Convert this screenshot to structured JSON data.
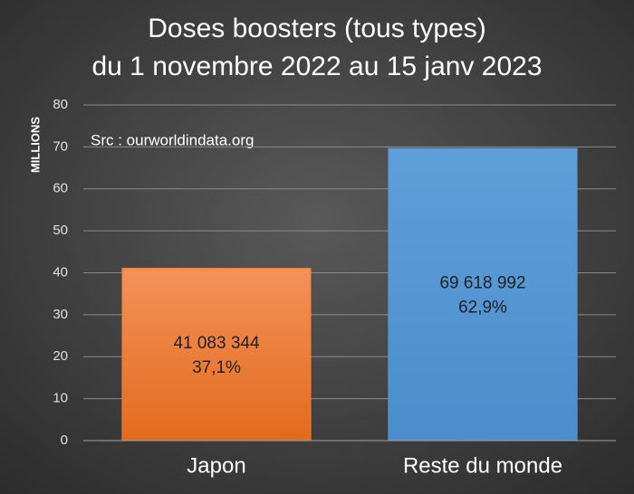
{
  "chart_data": {
    "type": "bar",
    "title": [
      "Doses boosters (tous types)",
      "du 1 novembre 2022 au 15 janv 2023"
    ],
    "y_label": "MILLIONS",
    "annotation": "Src : ourworldindata.org",
    "categories": [
      "Japon",
      "Reste du monde"
    ],
    "values": [
      41.083344,
      69.618992
    ],
    "value_labels": [
      "41 083 344",
      "69 618 992"
    ],
    "percentages": [
      37.1,
      62.9
    ],
    "percentage_labels": [
      "37,1%",
      "62,9%"
    ],
    "colors": [
      "#ed7d31",
      "#5b9bd5"
    ],
    "ylim": [
      0,
      80
    ],
    "yticks": [
      0,
      10,
      20,
      30,
      40,
      50,
      60,
      70,
      80
    ],
    "grid": true
  }
}
